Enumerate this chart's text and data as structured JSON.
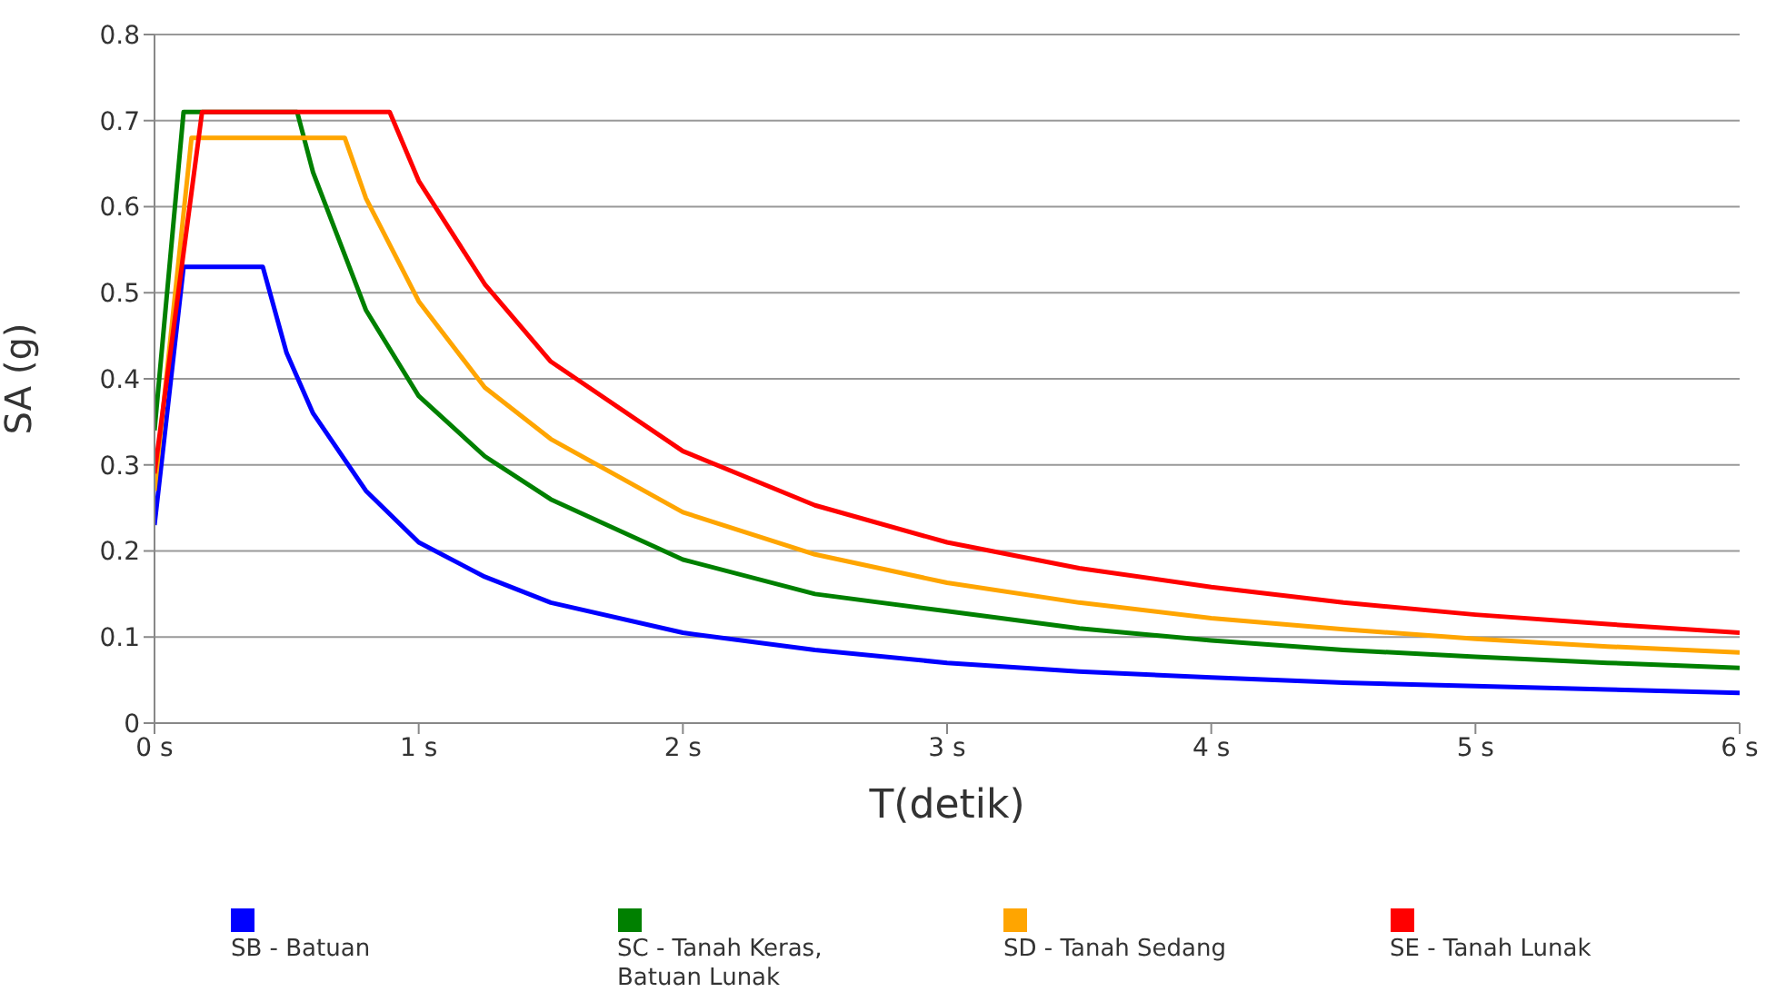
{
  "chart_data": {
    "type": "line",
    "xlabel": "T(detik)",
    "ylabel": "SA (g)",
    "xlim": [
      0,
      6
    ],
    "xticks": [
      {
        "value": 0,
        "label": "0 s"
      },
      {
        "value": 1,
        "label": "1 s"
      },
      {
        "value": 2,
        "label": "2 s"
      },
      {
        "value": 3,
        "label": "3 s"
      },
      {
        "value": 4,
        "label": "4 s"
      },
      {
        "value": 5,
        "label": "5 s"
      },
      {
        "value": 6,
        "label": "6 s"
      }
    ],
    "ylim": [
      0,
      0.8
    ],
    "yticks": [
      0,
      0.1,
      0.2,
      0.3,
      0.4,
      0.5,
      0.6,
      0.7,
      0.8
    ],
    "grid": "y",
    "legend": "bottom",
    "marker": "none",
    "line_style": "solid",
    "series": [
      {
        "name": "SB - Batuan",
        "color": "#0000ff",
        "x": [
          0,
          0.11,
          0.41,
          0.5,
          0.6,
          0.8,
          1,
          1.25,
          1.5,
          2,
          2.5,
          3,
          3.5,
          4,
          4.5,
          5,
          5.5,
          6
        ],
        "values": [
          0.23,
          0.53,
          0.53,
          0.43,
          0.36,
          0.27,
          0.21,
          0.17,
          0.14,
          0.105,
          0.085,
          0.07,
          0.06,
          0.053,
          0.047,
          0.043,
          0.039,
          0.035
        ]
      },
      {
        "name": "SC - Tanah Keras, Batuan Lunak",
        "color": "#008000",
        "x": [
          0,
          0.11,
          0.54,
          0.6,
          0.8,
          1,
          1.25,
          1.5,
          2,
          2.5,
          3,
          3.5,
          4,
          4.5,
          5,
          5.5,
          6
        ],
        "values": [
          0.34,
          0.71,
          0.71,
          0.64,
          0.48,
          0.38,
          0.31,
          0.26,
          0.19,
          0.15,
          0.13,
          0.11,
          0.096,
          0.085,
          0.077,
          0.07,
          0.064
        ]
      },
      {
        "name": "SD - Tanah Sedang",
        "color": "#ffa500",
        "x": [
          0,
          0.14,
          0.72,
          0.8,
          1,
          1.25,
          1.5,
          2,
          2.5,
          3,
          3.5,
          4,
          4.5,
          5,
          5.5,
          6
        ],
        "values": [
          0.27,
          0.68,
          0.68,
          0.61,
          0.49,
          0.39,
          0.33,
          0.245,
          0.196,
          0.163,
          0.14,
          0.122,
          0.109,
          0.098,
          0.089,
          0.082
        ]
      },
      {
        "name": "SE - Tanah Lunak",
        "color": "#ff0000",
        "x": [
          0,
          0.18,
          0.89,
          1,
          1.25,
          1.5,
          2,
          2.5,
          3,
          3.5,
          4,
          4.5,
          5,
          5.5,
          6
        ],
        "values": [
          0.29,
          0.71,
          0.71,
          0.63,
          0.51,
          0.42,
          0.316,
          0.253,
          0.21,
          0.18,
          0.158,
          0.14,
          0.126,
          0.115,
          0.105
        ]
      }
    ]
  }
}
